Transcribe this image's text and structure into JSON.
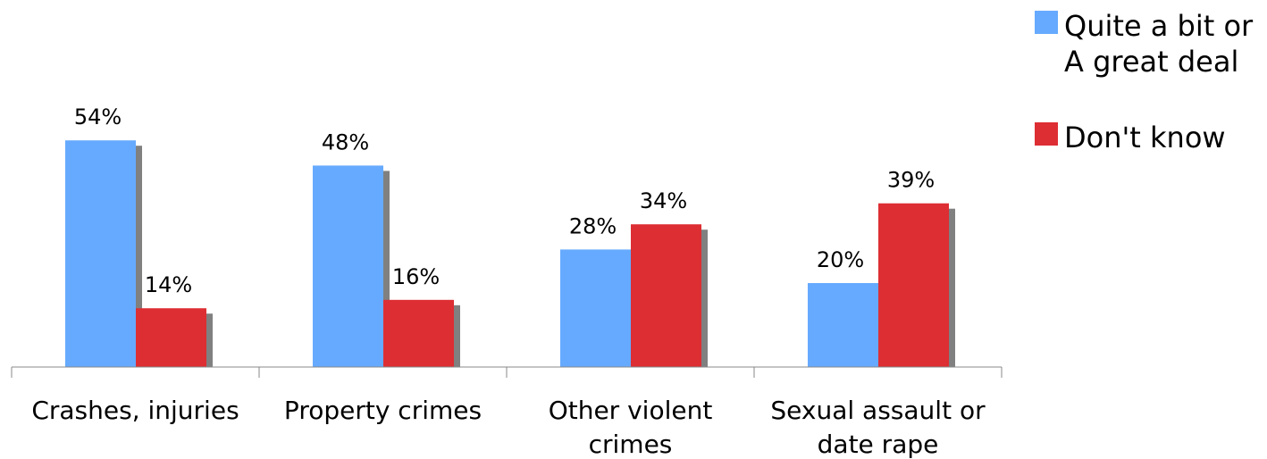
{
  "chart_data": {
    "type": "bar",
    "categories": [
      [
        "Crashes, injuries"
      ],
      [
        "Property crimes"
      ],
      [
        "Other violent",
        "crimes"
      ],
      [
        "Sexual assault or",
        "date rape"
      ]
    ],
    "series": [
      {
        "name": [
          "Quite a bit or",
          "A great deal"
        ],
        "values": [
          54,
          48,
          28,
          20
        ],
        "color": "#66aaff"
      },
      {
        "name": [
          "Don't know"
        ],
        "values": [
          14,
          16,
          34,
          39
        ],
        "color": "#dd2e33"
      }
    ],
    "value_labels": [
      [
        "54%",
        "48%",
        "28%",
        "20%"
      ],
      [
        "14%",
        "16%",
        "34%",
        "39%"
      ]
    ],
    "ylim": [
      0,
      60
    ],
    "grid": false,
    "legend_position": "top-right",
    "shadow_color": "#808080",
    "axis_color": "#888888"
  }
}
